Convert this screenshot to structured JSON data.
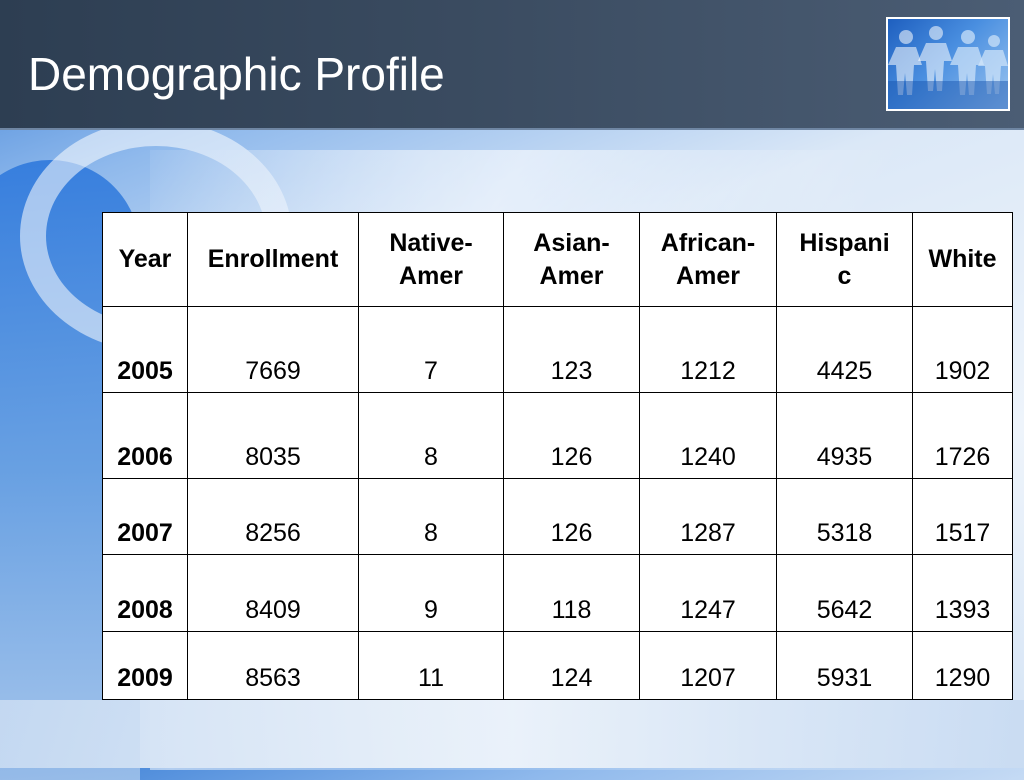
{
  "slide": {
    "title": "Demographic Profile",
    "logo_icon": "paper-people-chain-icon"
  },
  "table": {
    "headers": [
      "Year",
      "Enrollment",
      "Native-\nAmer",
      "Asian-\nAmer",
      "African-\nAmer",
      "Hispani\nc",
      "White"
    ],
    "rows": [
      [
        "2005",
        "7669",
        "7",
        "123",
        "1212",
        "4425",
        "1902"
      ],
      [
        "2006",
        "8035",
        "8",
        "126",
        "1240",
        "4935",
        "1726"
      ],
      [
        "2007",
        "8256",
        "8",
        "126",
        "1287",
        "5318",
        "1517"
      ],
      [
        "2008",
        "8409",
        "9",
        "118",
        "1247",
        "5642",
        "1393"
      ],
      [
        "2009",
        "8563",
        "11",
        "124",
        "1207",
        "5931",
        "1290"
      ]
    ]
  },
  "colors": {
    "title_bar": "#3a4b60",
    "title_text": "#ffffff",
    "accent_blue": "#2f79dc"
  }
}
